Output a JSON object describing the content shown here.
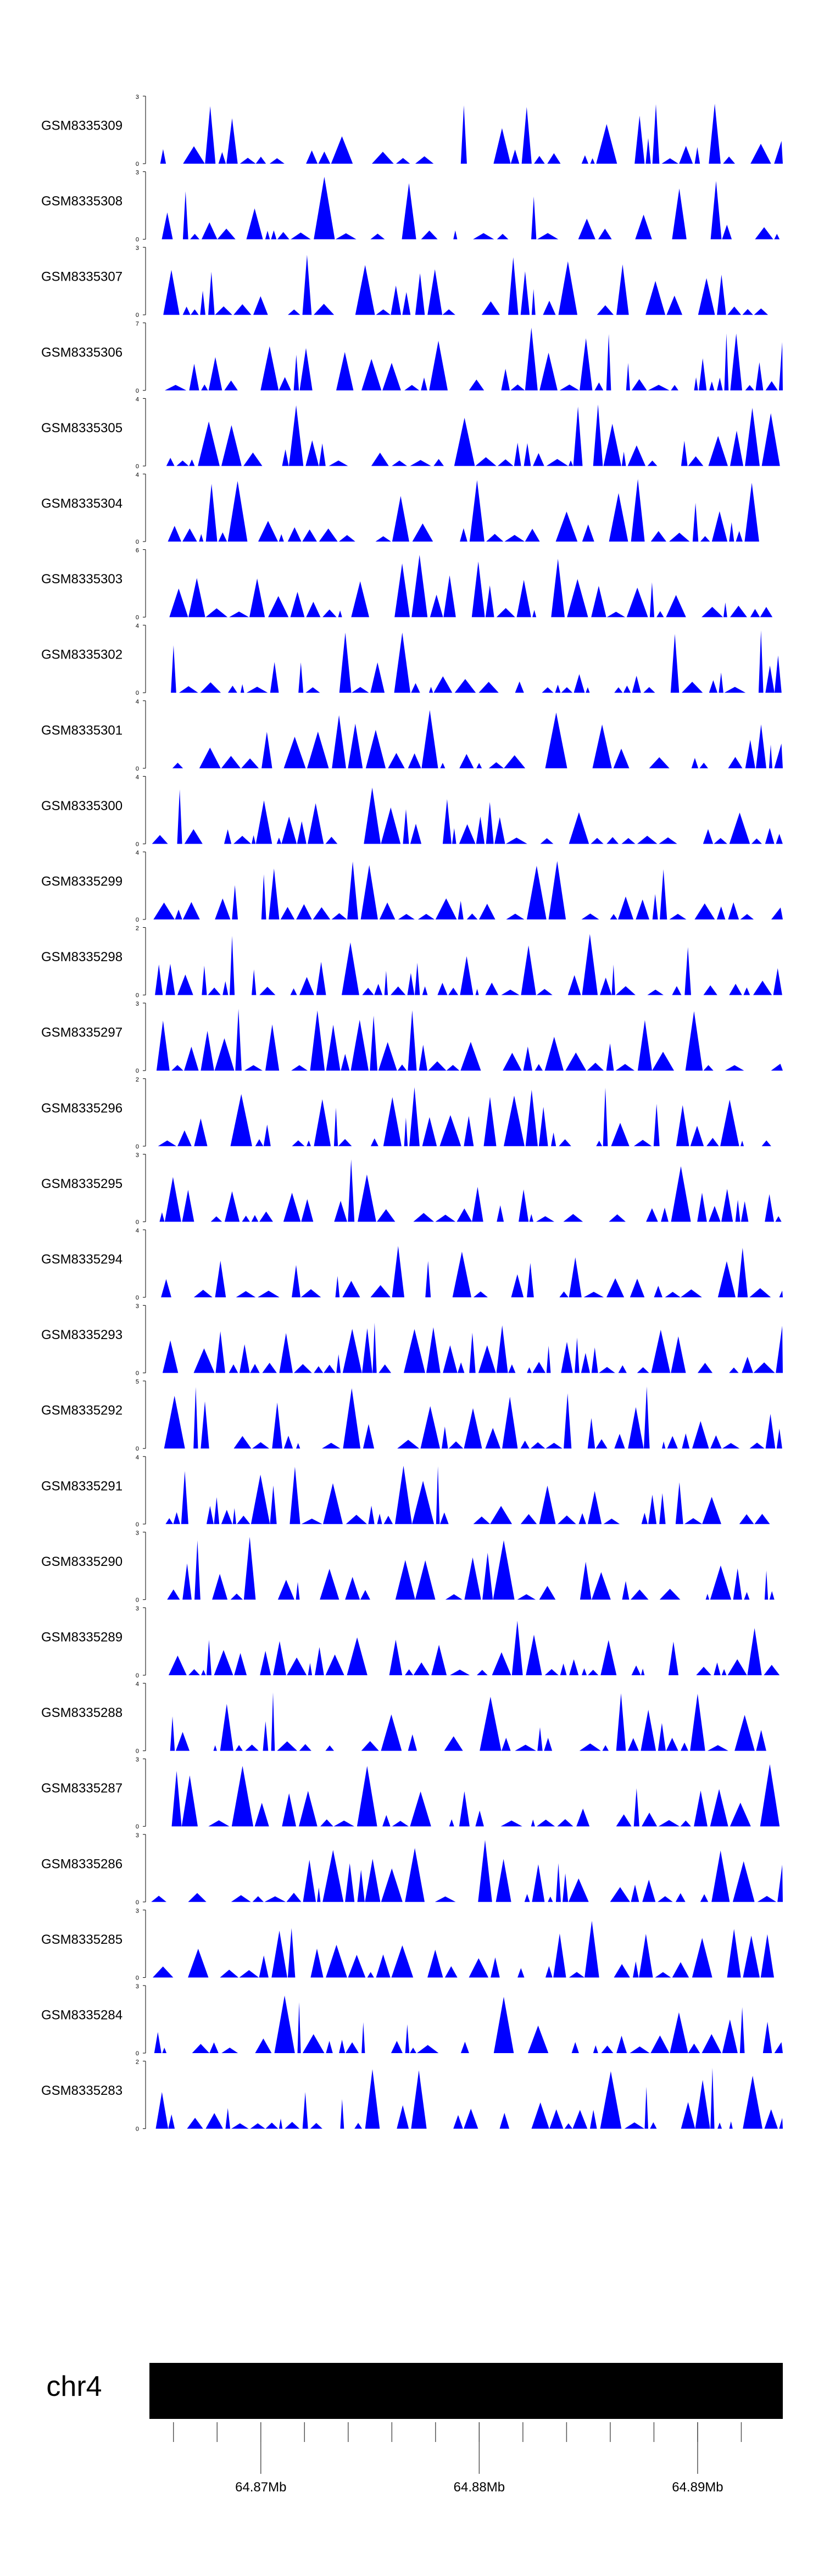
{
  "chart_data": {
    "type": "area",
    "title": "",
    "chromosome": "chr4",
    "x_range_mb": [
      64.8649,
      64.8939
    ],
    "axis_ticks": [
      {
        "value": 64.87,
        "label": "64.87Mb"
      },
      {
        "value": 64.88,
        "label": "64.88Mb"
      },
      {
        "value": 64.89,
        "label": "64.89Mb"
      }
    ],
    "minor_tick_step_mb": 0.002,
    "fill_color": "#0000ff",
    "ideogram_color": "#000000",
    "tracks": [
      {
        "name": "GSM8335309",
        "ymax": 3,
        "ymin": 0
      },
      {
        "name": "GSM8335308",
        "ymax": 3,
        "ymin": 0
      },
      {
        "name": "GSM8335307",
        "ymax": 3,
        "ymin": 0
      },
      {
        "name": "GSM8335306",
        "ymax": 7,
        "ymin": 0
      },
      {
        "name": "GSM8335305",
        "ymax": 4,
        "ymin": 0
      },
      {
        "name": "GSM8335304",
        "ymax": 4,
        "ymin": 0
      },
      {
        "name": "GSM8335303",
        "ymax": 6,
        "ymin": 0
      },
      {
        "name": "GSM8335302",
        "ymax": 4,
        "ymin": 0
      },
      {
        "name": "GSM8335301",
        "ymax": 4,
        "ymin": 0
      },
      {
        "name": "GSM8335300",
        "ymax": 4,
        "ymin": 0
      },
      {
        "name": "GSM8335299",
        "ymax": 4,
        "ymin": 0
      },
      {
        "name": "GSM8335298",
        "ymax": 2,
        "ymin": 0
      },
      {
        "name": "GSM8335297",
        "ymax": 3,
        "ymin": 0
      },
      {
        "name": "GSM8335296",
        "ymax": 2,
        "ymin": 0
      },
      {
        "name": "GSM8335295",
        "ymax": 3,
        "ymin": 0
      },
      {
        "name": "GSM8335294",
        "ymax": 4,
        "ymin": 0
      },
      {
        "name": "GSM8335293",
        "ymax": 3,
        "ymin": 0
      },
      {
        "name": "GSM8335292",
        "ymax": 5,
        "ymin": 0
      },
      {
        "name": "GSM8335291",
        "ymax": 4,
        "ymin": 0
      },
      {
        "name": "GSM8335290",
        "ymax": 3,
        "ymin": 0
      },
      {
        "name": "GSM8335289",
        "ymax": 3,
        "ymin": 0
      },
      {
        "name": "GSM8335288",
        "ymax": 4,
        "ymin": 0
      },
      {
        "name": "GSM8335287",
        "ymax": 3,
        "ymin": 0
      },
      {
        "name": "GSM8335286",
        "ymax": 3,
        "ymin": 0
      },
      {
        "name": "GSM8335285",
        "ymax": 3,
        "ymin": 0
      },
      {
        "name": "GSM8335284",
        "ymax": 3,
        "ymin": 0
      },
      {
        "name": "GSM8335283",
        "ymax": 2,
        "ymin": 0
      }
    ]
  }
}
